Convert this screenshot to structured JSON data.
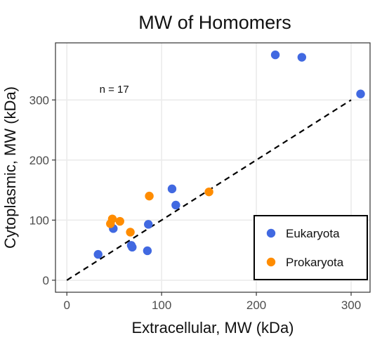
{
  "chart_data": {
    "type": "scatter",
    "title": "MW of Homomers",
    "xlabel": "Extracellular, MW (kDa)",
    "ylabel": "Cytoplasmic, MW (kDa)",
    "xlim": [
      -12,
      320
    ],
    "ylim": [
      -20,
      395
    ],
    "xticks": [
      0,
      100,
      200,
      300
    ],
    "yticks": [
      0,
      100,
      200,
      300
    ],
    "grid": true,
    "reference_line": {
      "type": "identity",
      "style": "dashed",
      "color": "#000000",
      "from": [
        0,
        0
      ],
      "to": [
        300,
        300
      ]
    },
    "annotation": {
      "text": "n = 17",
      "x": 50,
      "y": 318
    },
    "legend": {
      "position": "bottom-right"
    },
    "series": [
      {
        "name": "Eukaryota",
        "color": "#4169e1",
        "points": [
          {
            "x": 220,
            "y": 375
          },
          {
            "x": 248,
            "y": 371
          },
          {
            "x": 310,
            "y": 310
          },
          {
            "x": 111,
            "y": 152
          },
          {
            "x": 115,
            "y": 125
          },
          {
            "x": 86,
            "y": 93
          },
          {
            "x": 49,
            "y": 86
          },
          {
            "x": 68,
            "y": 58
          },
          {
            "x": 69,
            "y": 55
          },
          {
            "x": 85,
            "y": 49
          },
          {
            "x": 33,
            "y": 43
          }
        ]
      },
      {
        "name": "Prokaryota",
        "color": "#ff8c00",
        "points": [
          {
            "x": 150,
            "y": 147
          },
          {
            "x": 87,
            "y": 140
          },
          {
            "x": 48,
            "y": 102
          },
          {
            "x": 56,
            "y": 98
          },
          {
            "x": 46,
            "y": 94
          },
          {
            "x": 67,
            "y": 80
          }
        ]
      }
    ]
  }
}
